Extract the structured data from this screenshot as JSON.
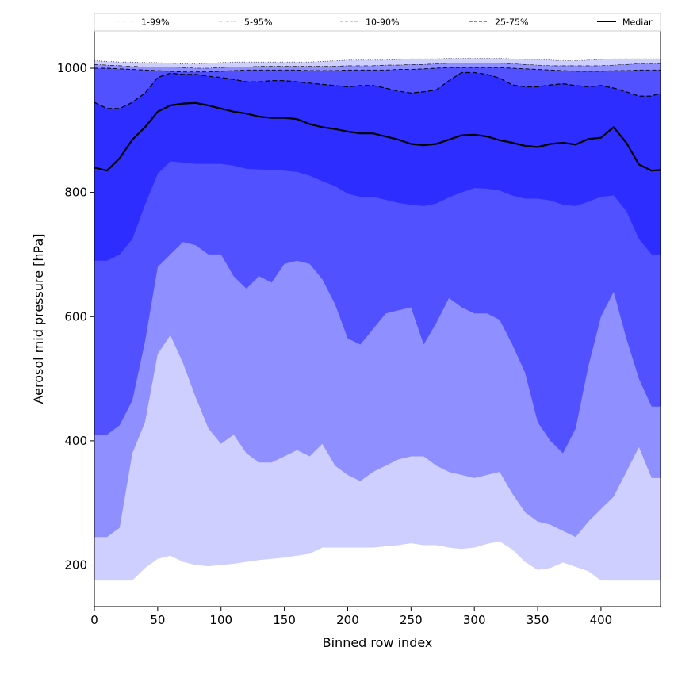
{
  "chart_data": {
    "type": "area",
    "title": "",
    "xlabel": "Binned row index",
    "ylabel": "Aerosol mid pressure [hPa]",
    "xlim": [
      0,
      447
    ],
    "ylim": [
      133,
      1060
    ],
    "xticks": [
      0,
      50,
      100,
      150,
      200,
      250,
      300,
      350,
      400
    ],
    "yticks": [
      200,
      400,
      600,
      800,
      1000
    ],
    "legend_position": "top",
    "legend": [
      {
        "label": "1-99%",
        "style": "dotted",
        "color": "#d7d7f0"
      },
      {
        "label": "5-95%",
        "style": "dashdot",
        "color": "#a0a0e6"
      },
      {
        "label": "10-90%",
        "style": "dashed",
        "color": "#8c8cff"
      },
      {
        "label": "25-75%",
        "style": "dashed",
        "color": "#5050ff"
      },
      {
        "label": "Median",
        "style": "solid",
        "color": "#000000"
      }
    ],
    "x": [
      0,
      10,
      20,
      30,
      40,
      50,
      60,
      70,
      80,
      90,
      100,
      110,
      120,
      130,
      140,
      150,
      160,
      170,
      180,
      190,
      200,
      210,
      220,
      230,
      240,
      250,
      260,
      270,
      280,
      290,
      300,
      310,
      320,
      330,
      340,
      350,
      360,
      370,
      380,
      390,
      400,
      410,
      420,
      430,
      440,
      447
    ],
    "bands": [
      {
        "name": "1-99%",
        "color": "#cfcfff",
        "upper": [
          1012,
          1011,
          1010,
          1010,
          1009,
          1009,
          1008,
          1007,
          1007,
          1008,
          1009,
          1010,
          1010,
          1010,
          1010,
          1010,
          1010,
          1010,
          1011,
          1012,
          1013,
          1013,
          1013,
          1013,
          1014,
          1015,
          1015,
          1015,
          1016,
          1016,
          1016,
          1016,
          1016,
          1015,
          1014,
          1014,
          1013,
          1012,
          1012,
          1013,
          1014,
          1015,
          1015,
          1015,
          1015,
          1015
        ],
        "lower": [
          175,
          175,
          175,
          175,
          195,
          210,
          215,
          205,
          200,
          198,
          200,
          202,
          205,
          208,
          210,
          212,
          215,
          218,
          228,
          228,
          228,
          228,
          228,
          230,
          232,
          235,
          232,
          232,
          228,
          226,
          228,
          234,
          238,
          225,
          205,
          192,
          195,
          204,
          197,
          190,
          175,
          175,
          175,
          175,
          175,
          175
        ]
      },
      {
        "name": "5-95%",
        "color": "#8f8fff",
        "upper": [
          1006,
          1005,
          1004,
          1003,
          1002,
          1002,
          1002,
          1001,
          1000,
          1000,
          1001,
          1002,
          1002,
          1003,
          1003,
          1003,
          1003,
          1003,
          1003,
          1003,
          1004,
          1004,
          1004,
          1005,
          1005,
          1006,
          1006,
          1007,
          1008,
          1008,
          1008,
          1008,
          1008,
          1007,
          1006,
          1005,
          1004,
          1004,
          1004,
          1004,
          1004,
          1005,
          1006,
          1007,
          1007,
          1007
        ],
        "lower": [
          245,
          245,
          260,
          380,
          430,
          540,
          570,
          525,
          470,
          420,
          395,
          410,
          380,
          365,
          365,
          375,
          385,
          375,
          395,
          360,
          345,
          335,
          350,
          360,
          370,
          375,
          375,
          360,
          350,
          345,
          340,
          345,
          350,
          315,
          285,
          270,
          265,
          255,
          245,
          270,
          290,
          310,
          350,
          390,
          340,
          340
        ]
      },
      {
        "name": "10-90%",
        "color": "#5151ff",
        "upper": [
          1000,
          1000,
          999,
          998,
          997,
          996,
          995,
          994,
          994,
          994,
          995,
          996,
          997,
          997,
          997,
          997,
          997,
          996,
          996,
          996,
          997,
          997,
          997,
          997,
          998,
          998,
          999,
          1000,
          1001,
          1001,
          1001,
          1001,
          1001,
          1000,
          999,
          998,
          997,
          996,
          995,
          995,
          995,
          996,
          996,
          997,
          997,
          997
        ],
        "lower": [
          410,
          410,
          425,
          465,
          560,
          680,
          700,
          720,
          715,
          700,
          700,
          665,
          645,
          665,
          655,
          685,
          690,
          685,
          660,
          620,
          565,
          555,
          580,
          605,
          610,
          615,
          555,
          590,
          630,
          615,
          605,
          605,
          595,
          555,
          510,
          430,
          400,
          380,
          420,
          520,
          600,
          640,
          565,
          500,
          455,
          455
        ]
      },
      {
        "name": "25-75%",
        "color": "#2d2dff",
        "upper": [
          945,
          935,
          935,
          945,
          960,
          985,
          992,
          990,
          990,
          987,
          985,
          982,
          978,
          978,
          980,
          980,
          978,
          976,
          974,
          972,
          970,
          972,
          972,
          968,
          963,
          960,
          962,
          965,
          980,
          993,
          993,
          990,
          984,
          973,
          970,
          970,
          973,
          975,
          972,
          970,
          972,
          968,
          962,
          955,
          955,
          960
        ],
        "lower": [
          690,
          690,
          700,
          725,
          780,
          830,
          850,
          848,
          846,
          846,
          846,
          843,
          838,
          837,
          836,
          835,
          833,
          827,
          818,
          810,
          798,
          793,
          793,
          788,
          783,
          780,
          778,
          782,
          792,
          800,
          807,
          806,
          803,
          795,
          790,
          790,
          787,
          780,
          778,
          785,
          793,
          795,
          770,
          725,
          700,
          700
        ]
      }
    ],
    "median": [
      840,
      835,
      855,
      885,
      905,
      930,
      940,
      943,
      944,
      940,
      935,
      930,
      927,
      922,
      920,
      920,
      918,
      910,
      905,
      902,
      898,
      895,
      895,
      890,
      885,
      878,
      876,
      878,
      885,
      892,
      893,
      890,
      884,
      880,
      875,
      873,
      878,
      880,
      877,
      886,
      888,
      905,
      880,
      845,
      835,
      836
    ]
  }
}
